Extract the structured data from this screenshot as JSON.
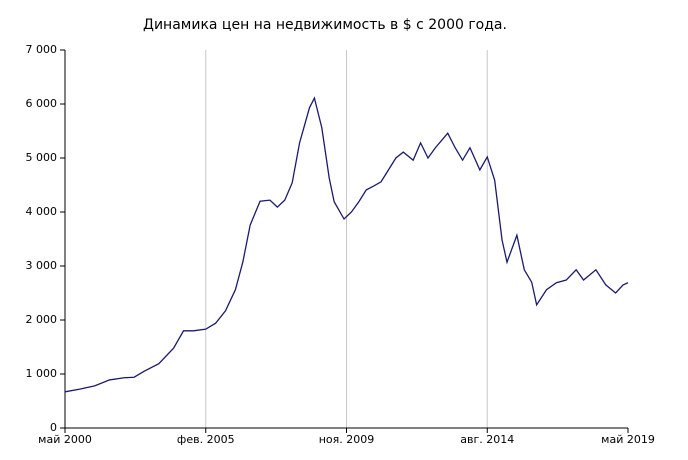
{
  "chart_data": {
    "type": "line",
    "title": "Динамика цен на недвижимость в $ с 2000 года.",
    "x": [
      "2000-05",
      "2000-11",
      "2001-05",
      "2001-11",
      "2002-05",
      "2002-09",
      "2003-01",
      "2003-07",
      "2004-01",
      "2004-05",
      "2004-09",
      "2005-02",
      "2005-06",
      "2005-10",
      "2006-02",
      "2006-05",
      "2006-08",
      "2006-12",
      "2007-04",
      "2007-07",
      "2007-10",
      "2008-01",
      "2008-04",
      "2008-08",
      "2008-10",
      "2009-01",
      "2009-04",
      "2009-06",
      "2009-10",
      "2010-01",
      "2010-04",
      "2010-07",
      "2010-10",
      "2011-01",
      "2011-04",
      "2011-07",
      "2011-10",
      "2012-02",
      "2012-05",
      "2012-08",
      "2012-11",
      "2013-04",
      "2013-07",
      "2013-10",
      "2014-01",
      "2014-05",
      "2014-08",
      "2014-11",
      "2015-02",
      "2015-04",
      "2015-08",
      "2015-11",
      "2016-02",
      "2016-04",
      "2016-08",
      "2016-12",
      "2017-04",
      "2017-08",
      "2017-11",
      "2018-04",
      "2018-08",
      "2018-12",
      "2019-03",
      "2019-05"
    ],
    "series": [
      {
        "color": "#1a1a6e",
        "values": [
          670,
          720,
          780,
          890,
          930,
          940,
          1050,
          1190,
          1480,
          1800,
          1800,
          1830,
          1940,
          2170,
          2560,
          3070,
          3760,
          4200,
          4220,
          4090,
          4220,
          4540,
          5280,
          5930,
          6110,
          5560,
          4630,
          4190,
          3870,
          4000,
          4190,
          4410,
          4480,
          4560,
          4780,
          5000,
          5110,
          4960,
          5280,
          5000,
          5190,
          5460,
          5190,
          4960,
          5190,
          4780,
          5020,
          4590,
          3480,
          3070,
          3570,
          2930,
          2700,
          2280,
          2560,
          2690,
          2740,
          2930,
          2740,
          2930,
          2650,
          2500,
          2650,
          2690
        ]
      }
    ],
    "xlim": [
      "2000-05",
      "2019-05"
    ],
    "xticks": [
      {
        "value": "2000-05",
        "label": "май 2000"
      },
      {
        "value": "2005-02",
        "label": "фев. 2005"
      },
      {
        "value": "2009-11",
        "label": "ноя. 2009"
      },
      {
        "value": "2014-08",
        "label": "авг. 2014"
      },
      {
        "value": "2019-05",
        "label": "май 2019"
      }
    ],
    "ylim": [
      0,
      7000
    ],
    "yticks": [
      0,
      {
        "value": 1000,
        "label": "1 000"
      },
      {
        "value": 2000,
        "label": "2 000"
      },
      {
        "value": 3000,
        "label": "3 000"
      },
      {
        "value": 4000,
        "label": "4 000"
      },
      {
        "value": 5000,
        "label": "5 000"
      },
      {
        "value": 6000,
        "label": "6 000"
      },
      {
        "value": 7000,
        "label": "7 000"
      }
    ],
    "grid": "x"
  }
}
